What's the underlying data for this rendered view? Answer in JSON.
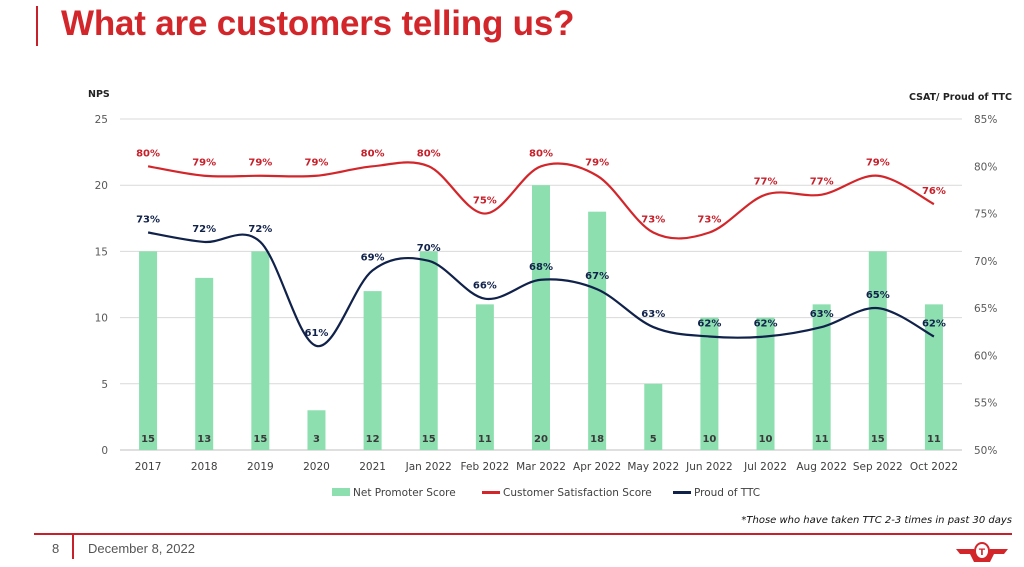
{
  "slide": {
    "title": "What are customers telling us?",
    "footnote": "*Those who have taken TTC 2-3 times in past 30 days",
    "page_number": "8",
    "date": "December 8, 2022",
    "logo": "ttc-logo-icon"
  },
  "colors": {
    "title": "#d3262b",
    "accent_line": "#c8202a",
    "nps_bar": "#8ddfb0",
    "csat_line": "#d3262b",
    "proud_line": "#10214a",
    "grid": "#d9d9d9"
  },
  "chart_data": {
    "type": "bar",
    "combo": "bar + line (dual axis)",
    "title": "",
    "xlabel": "",
    "ylabel": "NPS",
    "y2label": "CSAT/ Proud of TTC",
    "ylim": [
      0,
      25
    ],
    "yticks": [
      0,
      5,
      10,
      15,
      20,
      25
    ],
    "ytick_labels": [
      "0",
      "5",
      "10",
      "15",
      "20",
      "25"
    ],
    "y2lim": [
      50,
      85
    ],
    "y2ticks": [
      50,
      55,
      60,
      65,
      70,
      75,
      80,
      85
    ],
    "y2tick_labels": [
      "50%",
      "55%",
      "60%",
      "65%",
      "70%",
      "75%",
      "80%",
      "85%"
    ],
    "grid": true,
    "legend_position": "bottom",
    "categories": [
      "2017",
      "2018",
      "2019",
      "2020",
      "2021",
      "Jan 2022",
      "Feb 2022",
      "Mar 2022",
      "Apr 2022",
      "May 2022",
      "Jun 2022",
      "Jul 2022",
      "Aug 2022",
      "Sep 2022",
      "Oct 2022"
    ],
    "series": [
      {
        "name": "Net Promoter Score",
        "type": "bar",
        "axis": "left",
        "values": [
          15,
          13,
          15,
          3,
          12,
          15,
          11,
          20,
          18,
          5,
          10,
          10,
          11,
          15,
          11
        ],
        "labels": [
          "15",
          "13",
          "15",
          "3",
          "12",
          "15",
          "11",
          "20",
          "18",
          "5",
          "10",
          "10",
          "11",
          "15",
          "11"
        ]
      },
      {
        "name": "Customer Satisfaction Score",
        "type": "line",
        "smooth": true,
        "axis": "right",
        "values": [
          80,
          79,
          79,
          79,
          80,
          80,
          75,
          80,
          79,
          73,
          73,
          77,
          77,
          79,
          76
        ],
        "labels": [
          "80%",
          "79%",
          "79%",
          "79%",
          "80%",
          "80%",
          "75%",
          "80%",
          "79%",
          "73%",
          "73%",
          "77%",
          "77%",
          "79%",
          "76%"
        ]
      },
      {
        "name": "Proud of TTC",
        "type": "line",
        "smooth": true,
        "axis": "right",
        "values": [
          73,
          72,
          72,
          61,
          69,
          70,
          66,
          68,
          67,
          63,
          62,
          62,
          63,
          65,
          62
        ],
        "labels": [
          "73%",
          "72%",
          "72%",
          "61%",
          "69%",
          "70%",
          "66%",
          "68%",
          "67%",
          "63%",
          "62%",
          "62%",
          "63%",
          "65%",
          "62%"
        ]
      }
    ]
  }
}
